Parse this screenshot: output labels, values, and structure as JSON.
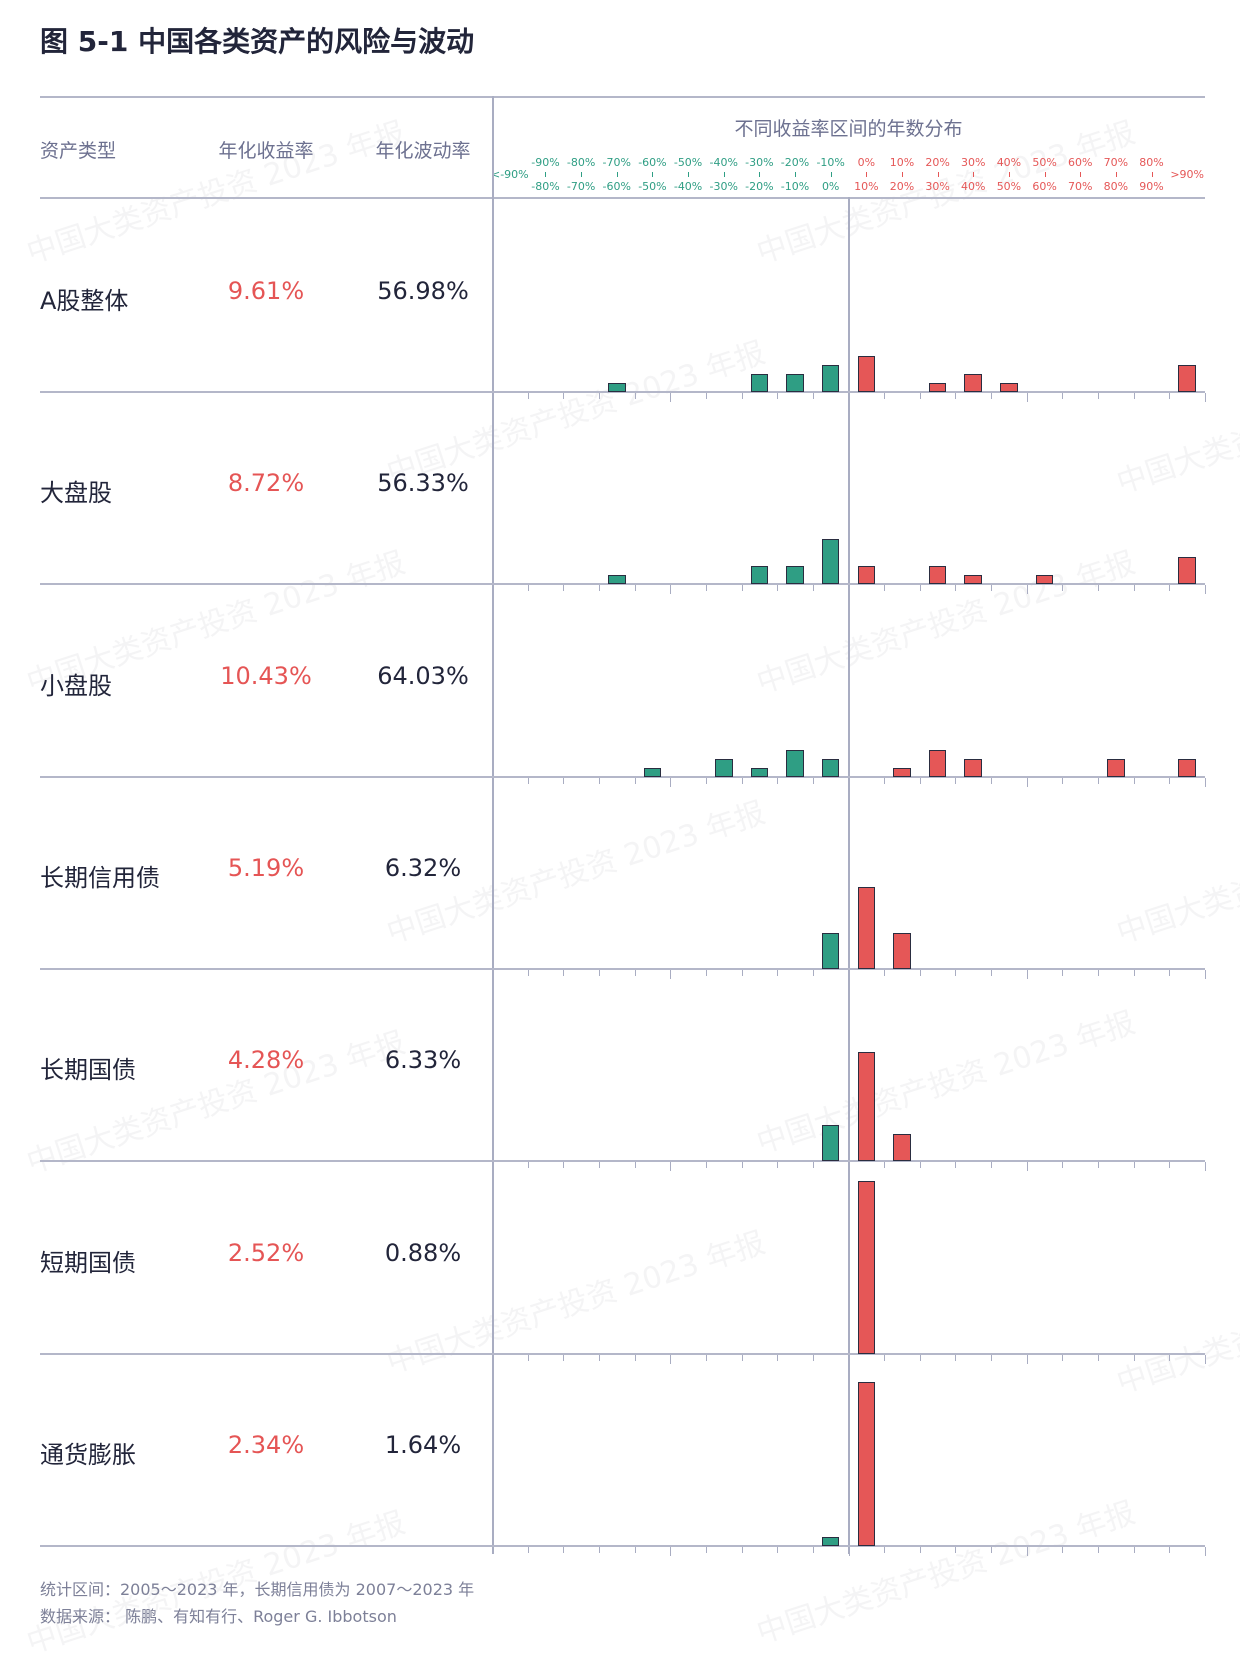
{
  "title": "图 5-1  中国各类资产的风险与波动",
  "headers": {
    "asset": "资产类型",
    "return": "年化收益率",
    "volatility": "年化波动率",
    "distribution": "不同收益率区间的年数分布"
  },
  "colors": {
    "negative": "#2f9e84",
    "positive": "#e55757"
  },
  "chart_data": {
    "type": "bar",
    "title": "不同收益率区间的年数分布",
    "bins": [
      {
        "top": "<-90%",
        "bottom": ""
      },
      {
        "top": "-90%",
        "bottom": "-80%"
      },
      {
        "top": "-80%",
        "bottom": "-70%"
      },
      {
        "top": "-70%",
        "bottom": "-60%"
      },
      {
        "top": "-60%",
        "bottom": "-50%"
      },
      {
        "top": "-50%",
        "bottom": "-40%"
      },
      {
        "top": "-40%",
        "bottom": "-30%"
      },
      {
        "top": "-30%",
        "bottom": "-20%"
      },
      {
        "top": "-20%",
        "bottom": "-10%"
      },
      {
        "top": "-10%",
        "bottom": "0%"
      },
      {
        "top": "0%",
        "bottom": "10%"
      },
      {
        "top": "10%",
        "bottom": "20%"
      },
      {
        "top": "20%",
        "bottom": "30%"
      },
      {
        "top": "30%",
        "bottom": "40%"
      },
      {
        "top": "40%",
        "bottom": "50%"
      },
      {
        "top": "50%",
        "bottom": "60%"
      },
      {
        "top": "60%",
        "bottom": "70%"
      },
      {
        "top": "70%",
        "bottom": "80%"
      },
      {
        "top": "80%",
        "bottom": "90%"
      },
      {
        "top": ">90%",
        "bottom": ""
      }
    ],
    "series": [
      {
        "name": "A股整体",
        "annual_return": "9.61%",
        "annual_volatility": "56.98%",
        "values": [
          0,
          0,
          0,
          1,
          0,
          0,
          0,
          2,
          2,
          3,
          4,
          0,
          1,
          2,
          1,
          0,
          0,
          0,
          0,
          3
        ]
      },
      {
        "name": "大盘股",
        "annual_return": "8.72%",
        "annual_volatility": "56.33%",
        "values": [
          0,
          0,
          0,
          1,
          0,
          0,
          0,
          2,
          2,
          5,
          2,
          0,
          2,
          1,
          0,
          1,
          0,
          0,
          0,
          3
        ]
      },
      {
        "name": "小盘股",
        "annual_return": "10.43%",
        "annual_volatility": "64.03%",
        "values": [
          0,
          0,
          0,
          0,
          1,
          0,
          2,
          1,
          3,
          2,
          0,
          1,
          3,
          2,
          0,
          0,
          0,
          2,
          0,
          2
        ]
      },
      {
        "name": "长期信用债",
        "annual_return": "5.19%",
        "annual_volatility": "6.32%",
        "values": [
          0,
          0,
          0,
          0,
          0,
          0,
          0,
          0,
          0,
          4,
          9,
          4,
          0,
          0,
          0,
          0,
          0,
          0,
          0,
          0
        ]
      },
      {
        "name": "长期国债",
        "annual_return": "4.28%",
        "annual_volatility": "6.33%",
        "values": [
          0,
          0,
          0,
          0,
          0,
          0,
          0,
          0,
          0,
          4,
          12,
          3,
          0,
          0,
          0,
          0,
          0,
          0,
          0,
          0
        ]
      },
      {
        "name": "短期国债",
        "annual_return": "2.52%",
        "annual_volatility": "0.88%",
        "values": [
          0,
          0,
          0,
          0,
          0,
          0,
          0,
          0,
          0,
          0,
          19,
          0,
          0,
          0,
          0,
          0,
          0,
          0,
          0,
          0
        ]
      },
      {
        "name": "通货膨胀",
        "annual_return": "2.34%",
        "annual_volatility": "1.64%",
        "values": [
          0,
          0,
          0,
          0,
          0,
          0,
          0,
          0,
          0,
          1,
          18,
          0,
          0,
          0,
          0,
          0,
          0,
          0,
          0,
          0
        ]
      }
    ]
  },
  "footer": {
    "period": "统计区间：2005～2023 年，长期信用债为 2007～2023 年",
    "source": "数据来源：  陈鹏、有知有行、Roger G. Ibbotson"
  },
  "watermark": "中国大类资产投资 2023 年报"
}
